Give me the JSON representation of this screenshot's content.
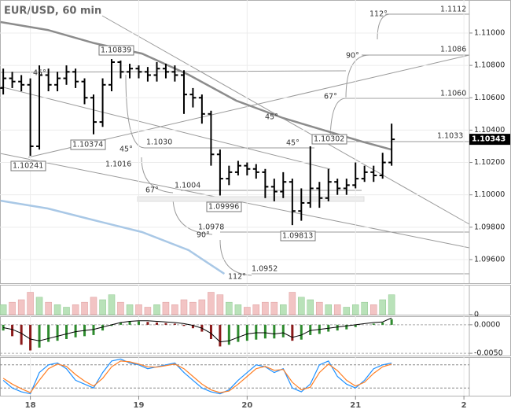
{
  "chart_data": [
    {
      "type": "candlestick",
      "title": "EUR/USD, 60 min",
      "xlim": [
        17.72,
        22.05
      ],
      "xticks": [
        18,
        19,
        20,
        21,
        {
          "value": 22,
          "label": "2"
        }
      ],
      "ylim": [
        1.09454,
        1.11204
      ],
      "yticks": [
        {
          "value": 1.096,
          "label": "1.09600"
        },
        {
          "value": 1.098,
          "label": "1.09800"
        },
        {
          "value": 1.1,
          "label": "1.10000"
        },
        {
          "value": 1.102,
          "label": "1.10200"
        },
        {
          "value": 1.104,
          "label": "1.10400"
        },
        {
          "value": 1.106,
          "label": "1.10600"
        },
        {
          "value": 1.108,
          "label": "1.10800"
        },
        {
          "value": 1.11,
          "label": "1.11000"
        }
      ],
      "grid": true,
      "color": "#000000",
      "x": [
        17.75,
        17.833,
        17.917,
        18.0,
        18.083,
        18.167,
        18.25,
        18.333,
        18.417,
        18.5,
        18.583,
        18.667,
        18.75,
        18.833,
        18.917,
        19.0,
        19.083,
        19.167,
        19.25,
        19.333,
        19.417,
        19.5,
        19.583,
        19.667,
        19.75,
        19.833,
        19.917,
        20.0,
        20.083,
        20.167,
        20.25,
        20.333,
        20.417,
        20.5,
        20.583,
        20.667,
        20.75,
        20.833,
        20.917,
        21.0,
        21.083,
        21.167,
        21.25,
        21.333
      ],
      "open": [
        1.1066,
        1.1072,
        1.107,
        1.1068,
        1.103,
        1.1074,
        1.1068,
        1.1072,
        1.1076,
        1.107,
        1.106,
        1.1045,
        1.1068,
        1.1082,
        1.1076,
        1.1078,
        1.1076,
        1.1074,
        1.1078,
        1.1076,
        1.1074,
        1.1062,
        1.106,
        1.105,
        1.1025,
        1.101,
        1.1014,
        1.1018,
        1.1016,
        1.1014,
        1.1005,
        1.1002,
        1.1008,
        1.099,
        1.0995,
        1.1004,
        1.0998,
        1.1008,
        1.1004,
        1.1006,
        1.101,
        1.1014,
        1.1012,
        1.102
      ],
      "high": [
        1.1078,
        1.1076,
        1.1074,
        1.1072,
        1.108,
        1.1078,
        1.1076,
        1.108,
        1.1078,
        1.1072,
        1.1062,
        1.1072,
        1.10839,
        1.1083,
        1.1081,
        1.108,
        1.1079,
        1.1082,
        1.1081,
        1.108,
        1.1077,
        1.1066,
        1.1062,
        1.1052,
        1.1028,
        1.1018,
        1.1021,
        1.102,
        1.1019,
        1.1016,
        1.101,
        1.1014,
        1.101,
        1.1004,
        1.103,
        1.1008,
        1.1016,
        1.101,
        1.101,
        1.102,
        1.1018,
        1.1018,
        1.1026,
        1.1044
      ],
      "low": [
        1.1062,
        1.1066,
        1.1064,
        1.10241,
        1.1028,
        1.1064,
        1.1064,
        1.1068,
        1.1066,
        1.1056,
        1.10374,
        1.1042,
        1.1064,
        1.1072,
        1.1072,
        1.1072,
        1.107,
        1.107,
        1.1072,
        1.107,
        1.105,
        1.1054,
        1.1044,
        1.1018,
        1.09996,
        1.1006,
        1.1012,
        1.1012,
        1.101,
        1.0998,
        1.0996,
        1.0998,
        1.09813,
        1.0984,
        1.0992,
        1.0992,
        1.0996,
        1.1,
        1.1,
        1.1004,
        1.1008,
        1.1008,
        1.101,
        1.1018
      ],
      "close": [
        1.1072,
        1.107,
        1.1068,
        1.103,
        1.1074,
        1.1068,
        1.1072,
        1.1076,
        1.107,
        1.106,
        1.1045,
        1.1068,
        1.1082,
        1.1076,
        1.1078,
        1.1076,
        1.1074,
        1.1078,
        1.1076,
        1.1074,
        1.1062,
        1.106,
        1.105,
        1.1025,
        1.101,
        1.1014,
        1.1018,
        1.1016,
        1.1014,
        1.1005,
        1.1002,
        1.1008,
        1.099,
        1.0995,
        1.1004,
        1.0998,
        1.1008,
        1.1004,
        1.1006,
        1.101,
        1.1014,
        1.1012,
        1.102,
        1.10343
      ],
      "overlays": [
        {
          "color": "#8c8c8c",
          "x": [
            17.725,
            18.16,
            18.59,
            19.03,
            19.46,
            19.9,
            20.33,
            20.77,
            21.06,
            21.33
          ],
          "values": [
            1.11068,
            1.11019,
            1.10937,
            1.10873,
            1.10742,
            1.10582,
            1.10475,
            1.10387,
            1.10329,
            1.1028
          ]
        },
        {
          "color": "#a9c8e6",
          "x": [
            17.725,
            18.16,
            18.59,
            19.03,
            19.46,
            19.79
          ],
          "values": [
            1.09964,
            1.09916,
            1.09843,
            1.0977,
            1.09658,
            1.09512
          ]
        }
      ],
      "annotations": [
        "1.1112",
        "1.1086",
        "1.1060",
        "1.1033",
        "1.1030",
        "1.1016",
        "1.1004",
        "1.0978",
        "1.0952",
        "112°",
        "90°",
        "67°",
        "45°",
        "45°",
        "45°",
        "45°",
        "67°",
        "90°",
        "112°"
      ],
      "price_labels": [
        "1.10839",
        "1.10374",
        "1.10241",
        "1.09996",
        "1.09813",
        "1.10302"
      ]
    },
    {
      "type": "volume",
      "ylim": [
        0,
        12
      ],
      "yticks": [
        0
      ],
      "up_color": "#b9e2b9",
      "down_color": "#f2c4c4",
      "values": [
        4,
        5,
        6,
        9,
        7,
        5,
        4,
        3,
        4,
        5,
        7,
        6,
        8,
        5,
        4,
        4,
        3,
        4,
        5,
        4,
        6,
        5,
        6,
        9,
        8,
        5,
        4,
        3,
        4,
        5,
        5,
        4,
        9,
        7,
        6,
        5,
        4,
        4,
        3,
        4,
        5,
        4,
        6,
        8
      ]
    },
    {
      "type": "macd",
      "ylim": [
        -0.0054,
        0.0015
      ],
      "yticks": [
        {
          "value": 0,
          "label": "0.0000"
        },
        {
          "value": -0.005,
          "label": "-0.0050"
        }
      ],
      "up_color": "#2e8b2e",
      "down_color": "#8b1a1a",
      "line_color": "#000000",
      "values": [
        -0.001,
        -0.002,
        -0.0035,
        -0.0045,
        -0.004,
        -0.003,
        -0.0028,
        -0.0025,
        -0.0022,
        -0.002,
        -0.0018,
        -0.001,
        -0.0002,
        0.0004,
        0.0006,
        0.0006,
        0.0005,
        0.0004,
        0.0003,
        0.0002,
        -0.0002,
        -0.0006,
        -0.0012,
        -0.0025,
        -0.0038,
        -0.0035,
        -0.003,
        -0.0028,
        -0.0026,
        -0.0024,
        -0.0024,
        -0.0022,
        -0.0028,
        -0.0026,
        -0.0018,
        -0.0016,
        -0.0012,
        -0.001,
        -0.0008,
        -0.0004,
        0.0,
        0.0002,
        0.0004,
        0.001
      ],
      "line": [
        -0.0005,
        -0.0008,
        -0.0015,
        -0.0025,
        -0.0028,
        -0.0024,
        -0.002,
        -0.0016,
        -0.0012,
        -0.001,
        -0.0008,
        -0.0004,
        0.0,
        0.0004,
        0.0006,
        0.0007,
        0.0007,
        0.0006,
        0.0005,
        0.0004,
        0.0002,
        -0.0001,
        -0.0006,
        -0.0015,
        -0.003,
        -0.0028,
        -0.0022,
        -0.0016,
        -0.0014,
        -0.0014,
        -0.0016,
        -0.0014,
        -0.0022,
        -0.0018,
        -0.001,
        -0.0008,
        -0.0006,
        -0.0004,
        -0.0002,
        0.0,
        0.0002,
        0.0004,
        0.0005,
        0.0012
      ]
    },
    {
      "type": "stochastic",
      "ylim": [
        0,
        100
      ],
      "levels": [
        20,
        80
      ],
      "series": [
        {
          "color": "#1e90ff",
          "values": [
            40,
            20,
            10,
            5,
            60,
            80,
            85,
            70,
            40,
            30,
            20,
            60,
            90,
            95,
            85,
            80,
            70,
            75,
            80,
            85,
            60,
            40,
            20,
            10,
            5,
            15,
            40,
            60,
            80,
            75,
            60,
            70,
            20,
            10,
            30,
            80,
            90,
            50,
            30,
            20,
            40,
            70,
            80,
            85
          ]
        },
        {
          "color": "#ff7f24",
          "values": [
            45,
            30,
            18,
            8,
            40,
            70,
            82,
            76,
            55,
            38,
            25,
            45,
            75,
            90,
            88,
            82,
            75,
            74,
            78,
            82,
            70,
            50,
            30,
            15,
            8,
            12,
            30,
            50,
            70,
            76,
            66,
            68,
            35,
            15,
            22,
            60,
            82,
            65,
            40,
            25,
            35,
            58,
            75,
            82
          ]
        }
      ]
    }
  ]
}
